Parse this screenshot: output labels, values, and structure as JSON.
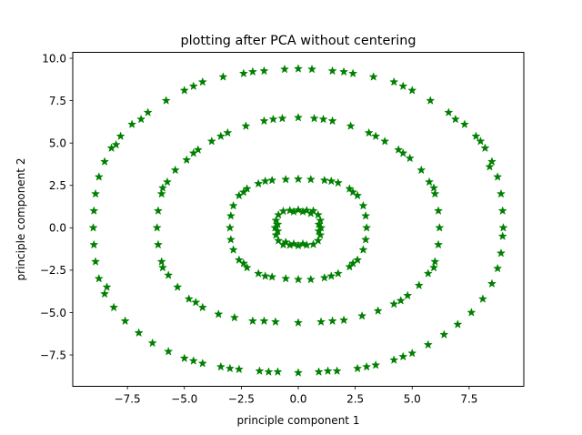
{
  "chart_data": {
    "type": "scatter",
    "title": "plotting after PCA without centering",
    "xlabel": "principle component 1",
    "ylabel": "principle component 2",
    "xlim": [
      -9.9,
      9.9
    ],
    "ylim": [
      -9.35,
      10.35
    ],
    "xticks": [
      -7.5,
      -5.0,
      -2.5,
      0.0,
      2.5,
      5.0,
      7.5
    ],
    "xtick_labels": [
      "−7.5",
      "−5.0",
      "−2.5",
      "0.0",
      "2.5",
      "5.0",
      "7.5"
    ],
    "yticks": [
      -7.5,
      -5.0,
      -2.5,
      0.0,
      2.5,
      5.0,
      7.5,
      10.0
    ],
    "ytick_labels": [
      "−7.5",
      "−5.0",
      "−2.5",
      "0.0",
      "2.5",
      "5.0",
      "7.5",
      "10.0"
    ],
    "marker": "star",
    "color": "#008000",
    "grid": false,
    "series": [
      {
        "points": [
          [
            1.0,
            0.0
          ],
          [
            0.97,
            0.43
          ],
          [
            0.87,
            0.76
          ],
          [
            0.66,
            1.0
          ],
          [
            0.37,
            1.02
          ],
          [
            0.0,
            1.05
          ],
          [
            -0.37,
            1.02
          ],
          [
            -0.66,
            0.98
          ],
          [
            -0.87,
            0.76
          ],
          [
            -0.98,
            0.43
          ],
          [
            -1.02,
            0.0
          ],
          [
            -0.98,
            -0.43
          ],
          [
            -0.87,
            -0.76
          ],
          [
            -0.66,
            -1.0
          ],
          [
            -0.37,
            -1.02
          ],
          [
            0.0,
            -1.05
          ],
          [
            0.37,
            -1.02
          ],
          [
            0.66,
            -0.98
          ],
          [
            0.87,
            -0.76
          ],
          [
            0.97,
            -0.43
          ],
          [
            0.9,
            0.2
          ],
          [
            -0.9,
            0.2
          ],
          [
            0.9,
            -0.2
          ],
          [
            -0.9,
            -0.2
          ],
          [
            0.2,
            0.95
          ],
          [
            -0.2,
            0.95
          ],
          [
            0.2,
            -0.95
          ],
          [
            -0.2,
            -0.95
          ],
          [
            0.55,
            0.85
          ],
          [
            -0.55,
            -0.85
          ]
        ]
      },
      {
        "points": [
          [
            3.0,
            0.0
          ],
          [
            2.96,
            0.7
          ],
          [
            2.85,
            1.3
          ],
          [
            2.6,
            1.9
          ],
          [
            2.25,
            2.3
          ],
          [
            1.75,
            2.65
          ],
          [
            1.15,
            2.8
          ],
          [
            0.55,
            2.85
          ],
          [
            0.0,
            2.87
          ],
          [
            -0.55,
            2.85
          ],
          [
            -1.15,
            2.8
          ],
          [
            -1.75,
            2.6
          ],
          [
            -2.25,
            2.3
          ],
          [
            -2.6,
            1.9
          ],
          [
            -2.85,
            1.3
          ],
          [
            -2.96,
            0.7
          ],
          [
            -3.0,
            0.0
          ],
          [
            -2.96,
            -0.7
          ],
          [
            -2.85,
            -1.3
          ],
          [
            -2.6,
            -1.9
          ],
          [
            -2.25,
            -2.35
          ],
          [
            -1.75,
            -2.7
          ],
          [
            -1.15,
            -2.9
          ],
          [
            -0.55,
            -3.0
          ],
          [
            0.0,
            -3.05
          ],
          [
            0.55,
            -3.05
          ],
          [
            1.15,
            -2.95
          ],
          [
            1.75,
            -2.7
          ],
          [
            2.25,
            -2.3
          ],
          [
            2.6,
            -1.9
          ],
          [
            2.85,
            -1.3
          ],
          [
            2.96,
            -0.7
          ],
          [
            2.4,
            2.1
          ],
          [
            -2.4,
            2.1
          ],
          [
            -2.4,
            -2.1
          ],
          [
            2.4,
            -2.1
          ],
          [
            1.45,
            2.75
          ],
          [
            -1.45,
            2.75
          ],
          [
            1.45,
            -2.85
          ],
          [
            -1.45,
            -2.85
          ]
        ]
      },
      {
        "points": [
          [
            6.2,
            0.0
          ],
          [
            6.15,
            1.0
          ],
          [
            6.0,
            2.0
          ],
          [
            5.75,
            2.7
          ],
          [
            5.4,
            3.4
          ],
          [
            4.9,
            4.1
          ],
          [
            4.4,
            4.6
          ],
          [
            3.8,
            5.1
          ],
          [
            3.1,
            5.6
          ],
          [
            2.3,
            6.0
          ],
          [
            1.5,
            6.3
          ],
          [
            0.7,
            6.45
          ],
          [
            0.0,
            6.5
          ],
          [
            -0.7,
            6.45
          ],
          [
            -1.5,
            6.3
          ],
          [
            -2.3,
            6.0
          ],
          [
            -3.1,
            5.6
          ],
          [
            -3.8,
            5.1
          ],
          [
            -4.4,
            4.6
          ],
          [
            -4.9,
            4.0
          ],
          [
            -5.4,
            3.4
          ],
          [
            -5.75,
            2.7
          ],
          [
            -6.0,
            2.0
          ],
          [
            -6.15,
            1.0
          ],
          [
            -6.2,
            0.0
          ],
          [
            -6.15,
            -1.0
          ],
          [
            -6.0,
            -2.0
          ],
          [
            -5.7,
            -2.8
          ],
          [
            -5.3,
            -3.5
          ],
          [
            -4.8,
            -4.2
          ],
          [
            -4.2,
            -4.7
          ],
          [
            -3.5,
            -5.1
          ],
          [
            -2.8,
            -5.3
          ],
          [
            -2.0,
            -5.5
          ],
          [
            -1.0,
            -5.55
          ],
          [
            0.0,
            -5.6
          ],
          [
            1.0,
            -5.55
          ],
          [
            2.0,
            -5.45
          ],
          [
            2.8,
            -5.2
          ],
          [
            3.5,
            -4.9
          ],
          [
            4.2,
            -4.5
          ],
          [
            4.8,
            -4.0
          ],
          [
            5.3,
            -3.4
          ],
          [
            5.7,
            -2.7
          ],
          [
            6.0,
            -2.0
          ],
          [
            6.15,
            -1.0
          ],
          [
            5.95,
            2.35
          ],
          [
            -5.95,
            2.35
          ],
          [
            5.95,
            -2.35
          ],
          [
            -5.95,
            -2.35
          ],
          [
            4.6,
            4.4
          ],
          [
            -4.6,
            4.4
          ],
          [
            3.4,
            5.4
          ],
          [
            -3.4,
            5.4
          ],
          [
            1.1,
            6.4
          ],
          [
            -1.1,
            6.4
          ],
          [
            4.5,
            -4.3
          ],
          [
            -4.5,
            -4.4
          ],
          [
            1.5,
            -5.5
          ],
          [
            -1.5,
            -5.5
          ]
        ]
      },
      {
        "points": [
          [
            9.0,
            0.0
          ],
          [
            8.97,
            1.0
          ],
          [
            8.9,
            2.0
          ],
          [
            8.75,
            3.0
          ],
          [
            8.5,
            3.9
          ],
          [
            8.2,
            4.7
          ],
          [
            7.8,
            5.4
          ],
          [
            7.3,
            6.1
          ],
          [
            6.6,
            6.8
          ],
          [
            5.8,
            7.5
          ],
          [
            5.0,
            8.1
          ],
          [
            4.2,
            8.6
          ],
          [
            3.3,
            8.9
          ],
          [
            2.4,
            9.1
          ],
          [
            1.5,
            9.25
          ],
          [
            0.6,
            9.35
          ],
          [
            0.0,
            9.38
          ],
          [
            -0.6,
            9.35
          ],
          [
            -1.5,
            9.25
          ],
          [
            -2.4,
            9.1
          ],
          [
            -3.3,
            8.9
          ],
          [
            -4.2,
            8.6
          ],
          [
            -5.0,
            8.1
          ],
          [
            -5.8,
            7.5
          ],
          [
            -6.6,
            6.8
          ],
          [
            -7.3,
            6.1
          ],
          [
            -7.8,
            5.4
          ],
          [
            -8.2,
            4.7
          ],
          [
            -8.5,
            3.9
          ],
          [
            -8.75,
            3.0
          ],
          [
            -8.9,
            2.0
          ],
          [
            -8.97,
            1.0
          ],
          [
            -9.0,
            0.0
          ],
          [
            -8.97,
            -1.0
          ],
          [
            -8.9,
            -2.0
          ],
          [
            -8.75,
            -3.0
          ],
          [
            -8.5,
            -3.9
          ],
          [
            -8.1,
            -4.7
          ],
          [
            -7.6,
            -5.5
          ],
          [
            -7.0,
            -6.2
          ],
          [
            -6.4,
            -6.8
          ],
          [
            -5.7,
            -7.3
          ],
          [
            -5.0,
            -7.7
          ],
          [
            -4.2,
            -8.0
          ],
          [
            -3.4,
            -8.2
          ],
          [
            -2.6,
            -8.35
          ],
          [
            -1.7,
            -8.45
          ],
          [
            -0.9,
            -8.5
          ],
          [
            0.0,
            -8.55
          ],
          [
            0.9,
            -8.5
          ],
          [
            1.7,
            -8.45
          ],
          [
            2.6,
            -8.3
          ],
          [
            3.4,
            -8.1
          ],
          [
            4.2,
            -7.8
          ],
          [
            5.0,
            -7.4
          ],
          [
            5.7,
            -6.9
          ],
          [
            6.4,
            -6.3
          ],
          [
            7.0,
            -5.7
          ],
          [
            7.6,
            -5.0
          ],
          [
            8.1,
            -4.2
          ],
          [
            8.5,
            -3.3
          ],
          [
            8.75,
            -2.4
          ],
          [
            8.9,
            -1.5
          ],
          [
            8.97,
            -0.5
          ],
          [
            -8.4,
            -3.5
          ],
          [
            8.4,
            3.6
          ],
          [
            -6.9,
            6.4
          ],
          [
            6.9,
            6.4
          ],
          [
            -3.0,
            -8.3
          ],
          [
            3.0,
            -8.2
          ],
          [
            2.0,
            9.2
          ],
          [
            -2.0,
            9.2
          ],
          [
            4.6,
            8.35
          ],
          [
            -4.6,
            8.35
          ],
          [
            -8.0,
            4.9
          ],
          [
            8.0,
            5.1
          ],
          [
            -1.3,
            -8.5
          ],
          [
            1.3,
            -8.45
          ],
          [
            -4.6,
            -7.85
          ],
          [
            4.6,
            -7.6
          ]
        ]
      }
    ]
  }
}
